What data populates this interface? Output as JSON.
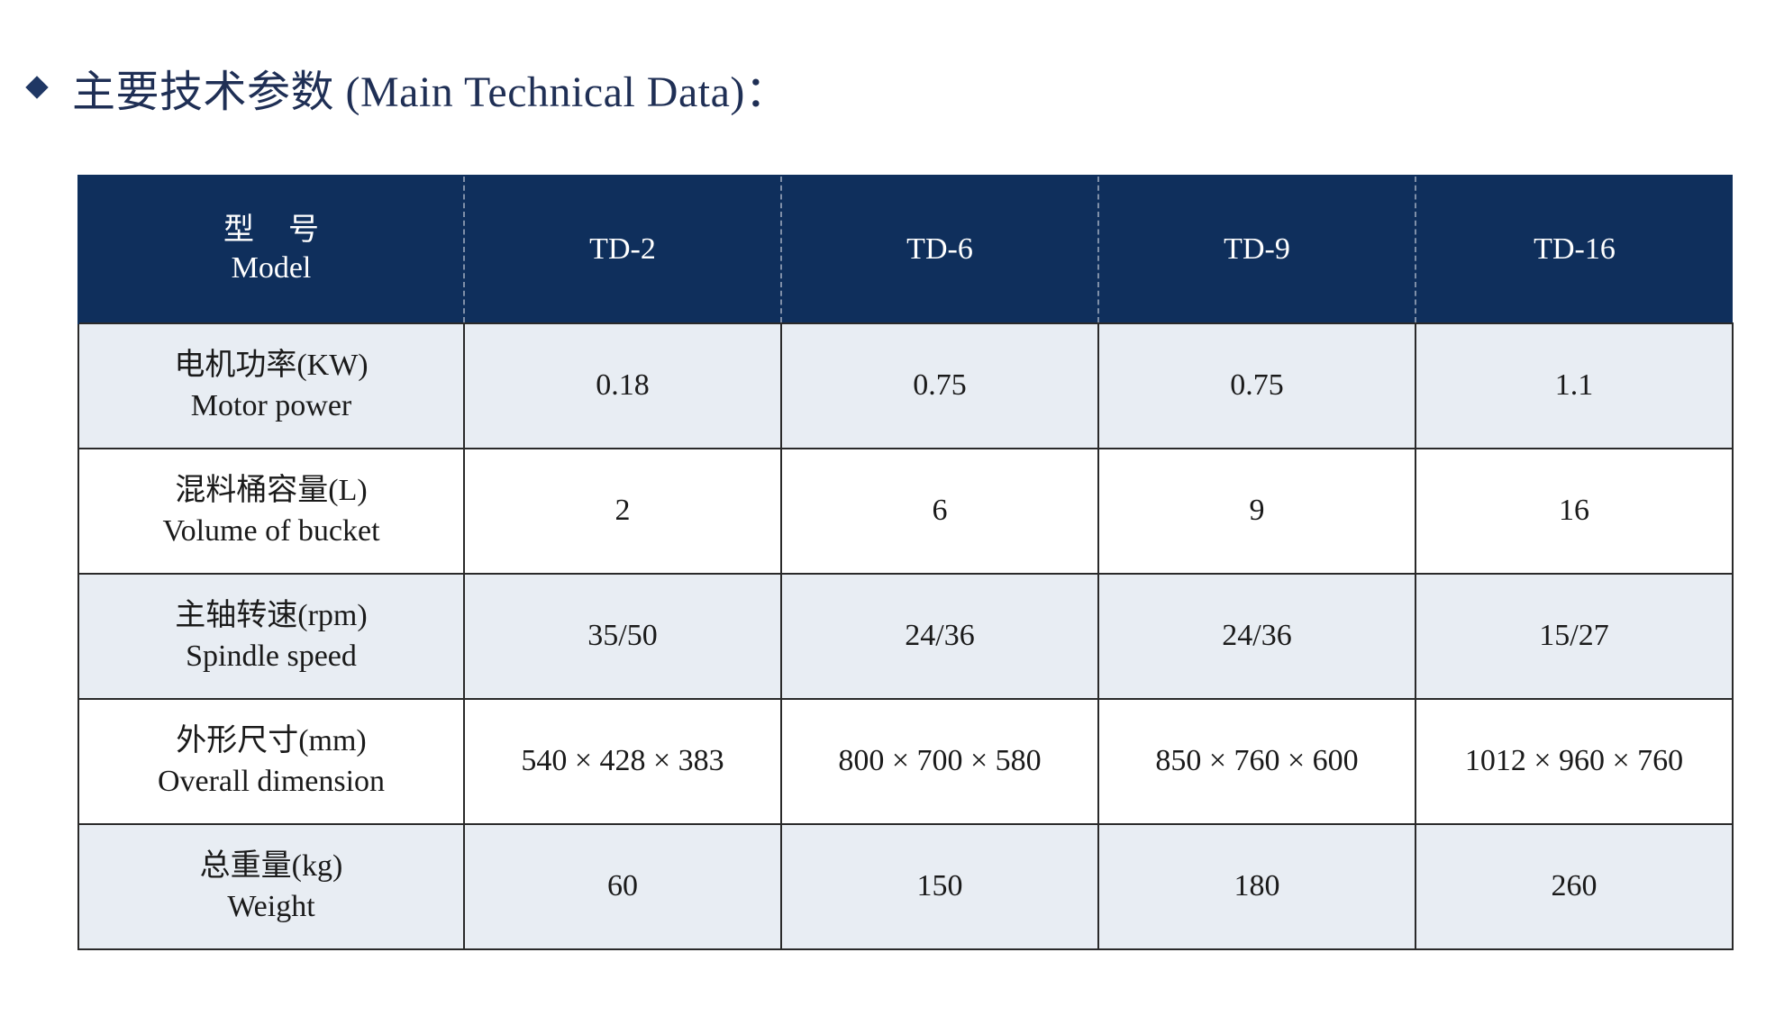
{
  "title": "主要技术参数 (Main Technical Data)：",
  "header": {
    "label_zh": "型号",
    "label_en": "Model",
    "models": [
      "TD-2",
      "TD-6",
      "TD-9",
      "TD-16"
    ]
  },
  "rows": [
    {
      "label_zh": "电机功率(KW)",
      "label_en": "Motor power",
      "values": [
        "0.18",
        "0.75",
        "0.75",
        "1.1"
      ]
    },
    {
      "label_zh": "混料桶容量(L)",
      "label_en": "Volume of bucket",
      "values": [
        "2",
        "6",
        "9",
        "16"
      ]
    },
    {
      "label_zh": "主轴转速(rpm)",
      "label_en": "Spindle speed",
      "values": [
        "35/50",
        "24/36",
        "24/36",
        "15/27"
      ]
    },
    {
      "label_zh": "外形尺寸(mm)",
      "label_en": "Overall dimension",
      "values": [
        "540 × 428 × 383",
        "800 × 700 × 580",
        "850 × 760 × 600",
        "1012 × 960 × 760"
      ]
    },
    {
      "label_zh": "总重量(kg)",
      "label_en": "Weight",
      "values": [
        "60",
        "150",
        "180",
        "260"
      ]
    }
  ],
  "colors": {
    "header_bg": "#0f2f5c",
    "title": "#1f2f55",
    "row_shade": "#e8edf3"
  }
}
